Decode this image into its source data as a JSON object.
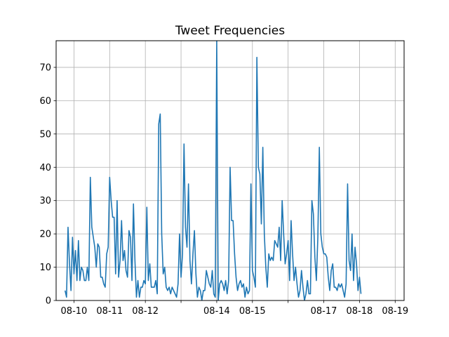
{
  "chart_data": {
    "type": "line",
    "title": "Tweet Frequencies",
    "xlabel": "",
    "ylabel": "",
    "grid": true,
    "line_color": "#1f77b4",
    "xlim": [
      "2017-08-09 12:00",
      "2017-08-19 06:00"
    ],
    "ylim": [
      0,
      78
    ],
    "y_ticks": [
      0,
      10,
      20,
      30,
      40,
      50,
      60,
      70
    ],
    "x_ticks": [
      {
        "date": "2017-08-10 00:00",
        "label": "08-10"
      },
      {
        "date": "2017-08-11 00:00",
        "label": "08-11"
      },
      {
        "date": "2017-08-12 00:00",
        "label": "08-12"
      },
      {
        "date": "2017-08-13 00:00",
        "label": ""
      },
      {
        "date": "2017-08-14 00:00",
        "label": "08-14"
      },
      {
        "date": "2017-08-15 00:00",
        "label": "08-15"
      },
      {
        "date": "2017-08-16 00:00",
        "label": ""
      },
      {
        "date": "2017-08-17 00:00",
        "label": "08-17"
      },
      {
        "date": "2017-08-18 00:00",
        "label": "08-18"
      },
      {
        "date": "2017-08-19 00:00",
        "label": "08-19"
      }
    ],
    "series": [
      {
        "start": "2017-08-09 18:00",
        "step_hours": 1,
        "values": [
          3,
          1,
          22,
          11,
          3,
          19,
          8,
          15,
          6,
          18,
          6,
          10,
          9,
          6,
          6,
          10,
          6,
          37,
          22,
          19,
          16,
          10,
          17,
          16,
          7,
          7,
          5,
          4,
          14,
          16,
          37,
          30,
          25,
          25,
          8,
          30,
          7,
          12,
          24,
          12,
          15,
          9,
          7,
          21,
          19,
          6,
          29,
          12,
          1,
          6,
          1,
          4,
          4,
          6,
          5,
          28,
          6,
          11,
          4,
          4,
          4,
          6,
          2,
          53,
          56,
          20,
          8,
          10,
          4,
          3,
          4,
          2,
          4,
          3,
          2,
          1,
          5,
          20,
          7,
          14,
          47,
          22,
          16,
          35,
          12,
          5,
          14,
          21,
          8,
          1,
          4,
          3,
          0,
          3,
          3,
          9,
          7,
          5,
          4,
          9,
          2,
          1,
          78,
          0,
          5,
          6,
          5,
          3,
          6,
          2,
          6,
          40,
          24,
          24,
          14,
          7,
          3,
          5,
          6,
          4,
          5,
          1,
          4,
          2,
          3,
          35,
          9,
          7,
          4,
          73,
          40,
          38,
          23,
          46,
          20,
          10,
          4,
          14,
          12,
          13,
          12,
          18,
          17,
          16,
          22,
          12,
          30,
          20,
          11,
          14,
          18,
          6,
          24,
          14,
          6,
          10,
          5,
          1,
          3,
          9,
          4,
          0,
          2,
          6,
          2,
          2,
          30,
          26,
          13,
          6,
          19,
          46,
          20,
          16,
          14,
          14,
          13,
          7,
          3,
          9,
          11,
          4,
          4,
          3,
          5,
          4,
          5,
          3,
          1,
          5,
          35,
          12,
          9,
          20,
          6,
          16,
          11,
          3,
          7,
          2
        ]
      }
    ]
  }
}
